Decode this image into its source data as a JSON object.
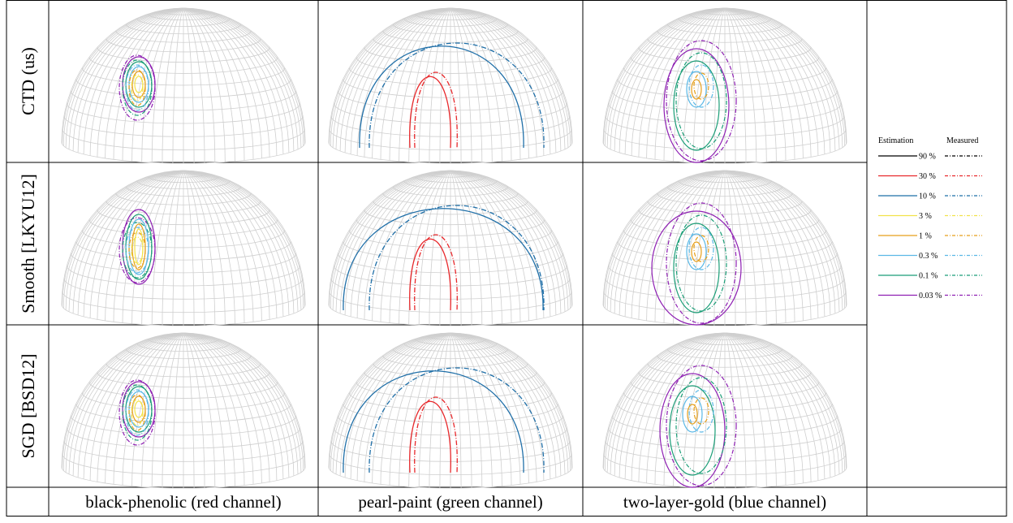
{
  "rows": [
    {
      "label": "CTD (us)"
    },
    {
      "label": "Smooth [LKYU12]"
    },
    {
      "label": "SGD [BSD12]"
    }
  ],
  "columns": [
    "black-phenolic (red channel)",
    "pearl-paint (green channel)",
    "two-layer-gold (blue channel)"
  ],
  "legend": {
    "estimation_header": "Estimation",
    "measured_header": "Measured",
    "levels": [
      {
        "label": "90 %",
        "color": "#000000"
      },
      {
        "label": "30 %",
        "color": "#e8282b"
      },
      {
        "label": "10 %",
        "color": "#1f6fa8"
      },
      {
        "label": "3 %",
        "color": "#f2e24a"
      },
      {
        "label": "1 %",
        "color": "#e69f1a"
      },
      {
        "label": "0.3 %",
        "color": "#5bb8e6"
      },
      {
        "label": "0.1 %",
        "color": "#1b9e77"
      },
      {
        "label": "0.03 %",
        "color": "#8e1fb3"
      }
    ]
  }
}
